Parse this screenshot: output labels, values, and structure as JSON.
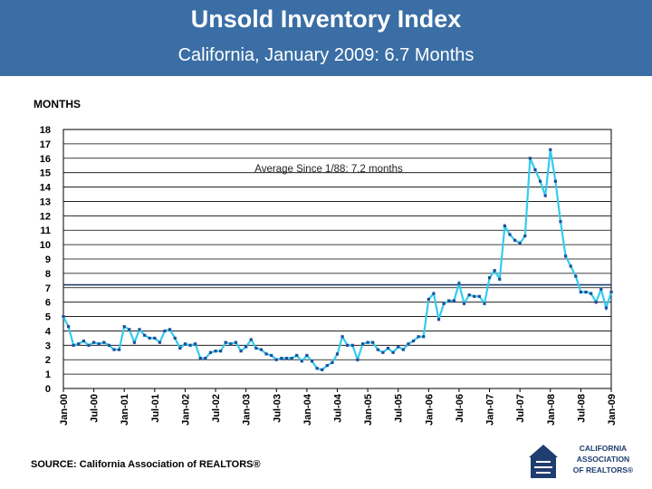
{
  "header": {
    "title": "Unsold Inventory Index",
    "subtitle": "California, January 2009: 6.7 Months"
  },
  "ylabel_top": "MONTHS",
  "source": "SOURCE: California Association of REALTORS®",
  "logo": {
    "line1": "CALIFORNIA",
    "line2": "ASSOCIATION",
    "line3": "OF REALTORS®"
  },
  "colors": {
    "header": "#3a6ea5",
    "line": "#33ccee",
    "marker": "#1f4e99",
    "avgline": "#1f3d6e"
  },
  "chart_data": {
    "type": "line",
    "title": "",
    "xlabel": "",
    "ylabel": "MONTHS",
    "ylim": [
      0,
      18
    ],
    "yticks": [
      0,
      1,
      2,
      3,
      4,
      5,
      6,
      7,
      8,
      9,
      10,
      11,
      12,
      13,
      14,
      15,
      16,
      17,
      18
    ],
    "xtick_labels": [
      "Jan-00",
      "Jul-00",
      "Jan-01",
      "Jul-01",
      "Jan-02",
      "Jul-02",
      "Jan-03",
      "Jul-03",
      "Jan-04",
      "Jul-04",
      "Jan-05",
      "Jul-05",
      "Jan-06",
      "Jul-06",
      "Jan-07",
      "Jul-07",
      "Jan-08",
      "Jul-08",
      "Jan-09"
    ],
    "annotation": "Average Since 1/88: 7.2 months",
    "average": 7.2,
    "grid": true,
    "values": [
      5.0,
      4.3,
      3.0,
      3.1,
      3.3,
      3.0,
      3.2,
      3.1,
      3.2,
      3.0,
      2.7,
      2.7,
      4.3,
      4.1,
      3.2,
      4.1,
      3.7,
      3.5,
      3.5,
      3.2,
      4.0,
      4.1,
      3.5,
      2.8,
      3.1,
      3.0,
      3.1,
      2.1,
      2.1,
      2.5,
      2.6,
      2.6,
      3.2,
      3.1,
      3.2,
      2.6,
      2.9,
      3.4,
      2.8,
      2.7,
      2.4,
      2.3,
      2.0,
      2.1,
      2.1,
      2.1,
      2.3,
      1.9,
      2.3,
      1.9,
      1.4,
      1.3,
      1.6,
      1.8,
      2.4,
      3.6,
      3.0,
      3.0,
      2.0,
      3.1,
      3.2,
      3.2,
      2.7,
      2.5,
      2.8,
      2.5,
      2.9,
      2.7,
      3.1,
      3.3,
      3.6,
      3.6,
      6.2,
      6.6,
      4.8,
      5.9,
      6.1,
      6.1,
      7.3,
      5.9,
      6.5,
      6.4,
      6.4,
      5.9,
      7.7,
      8.2,
      7.6,
      11.3,
      10.7,
      10.3,
      10.1,
      10.6,
      16.0,
      15.2,
      14.4,
      13.4,
      16.6,
      14.4,
      11.6,
      9.2,
      8.5,
      7.8,
      6.7,
      6.7,
      6.6,
      6.0,
      6.9,
      5.6,
      6.7
    ]
  }
}
